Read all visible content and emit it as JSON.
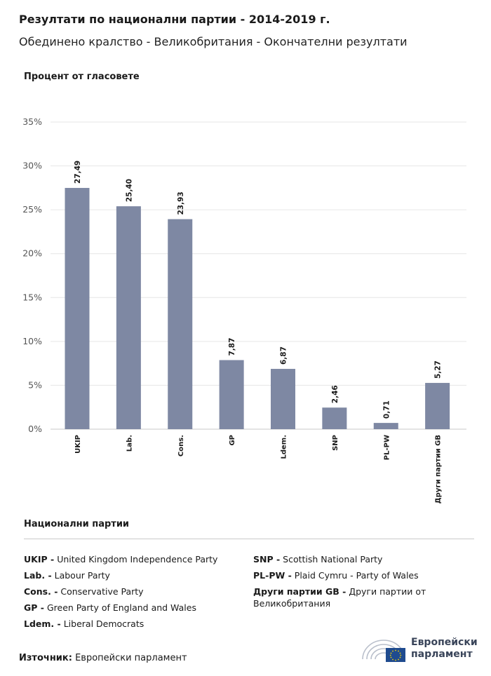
{
  "header": {
    "title": "Резултати по национални партии - 2014-2019 г.",
    "subtitle": "Обединено кралство - Великобритания - Окончателни резултати"
  },
  "chart_data": {
    "type": "bar",
    "ylabel": "Процент от гласовете",
    "xlabel": "",
    "ylim": [
      0,
      35
    ],
    "yticks": [
      0,
      5,
      10,
      15,
      20,
      25,
      30,
      35
    ],
    "ytick_labels": [
      "0%",
      "5%",
      "10%",
      "15%",
      "20%",
      "25%",
      "30%",
      "35%"
    ],
    "categories": [
      "UKIP",
      "Lab.",
      "Cons.",
      "GP",
      "Ldem.",
      "SNP",
      "PL-PW",
      "Други партии GB"
    ],
    "values": [
      27.49,
      25.4,
      23.93,
      7.87,
      6.87,
      2.46,
      0.71,
      5.27
    ],
    "value_labels": [
      "27,49",
      "25,40",
      "23,93",
      "7,87",
      "6,87",
      "2,46",
      "0,71",
      "5,27"
    ],
    "bar_color": "#7e88a3",
    "grid": true
  },
  "legend": {
    "title": "Национални партии",
    "left": [
      {
        "abbr": "UKIP -",
        "name": "United Kingdom Independence Party"
      },
      {
        "abbr": "Lab. -",
        "name": "Labour Party"
      },
      {
        "abbr": "Cons. -",
        "name": "Conservative Party"
      },
      {
        "abbr": "GP -",
        "name": "Green Party of England and Wales"
      },
      {
        "abbr": "Ldem. -",
        "name": "Liberal Democrats"
      }
    ],
    "right": [
      {
        "abbr": "SNP -",
        "name": "Scottish National Party"
      },
      {
        "abbr": "PL-PW -",
        "name": "Plaid Cymru - Party of Wales"
      },
      {
        "abbr": "Други партии GB -",
        "name": "Други партии от Великобритания"
      }
    ]
  },
  "footer": {
    "source_label": "Източник:",
    "source_value": "Европейски парламент",
    "logo_line1": "Европейски",
    "logo_line2": "парламент"
  }
}
